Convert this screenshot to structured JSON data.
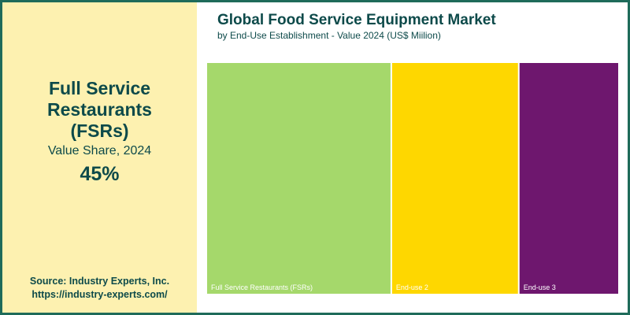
{
  "highlight": {
    "title": "Full Service Restaurants (FSRs)",
    "subtitle": "Value Share, 2024",
    "value": "45%"
  },
  "source": {
    "line1": "Source: Industry Experts, Inc.",
    "line2": "https://industry-experts.com/"
  },
  "colors": {
    "border": "#1e6b5a",
    "panel": "#fdf1b0",
    "text": "#0d4a4a"
  },
  "chart_data": {
    "type": "treemap",
    "title": "Global Food Service Equipment Market",
    "subtitle": "by End-Use Establishment - Value 2024 (US$ Miilion)",
    "items": [
      {
        "label": "Full Service Restaurants (FSRs)",
        "share": 45,
        "color": "#a5d86b"
      },
      {
        "label": "End-use 2",
        "share": 31,
        "color": "#fed700"
      },
      {
        "label": "End-use 3",
        "share": 24,
        "color": "#6e176e"
      }
    ]
  }
}
